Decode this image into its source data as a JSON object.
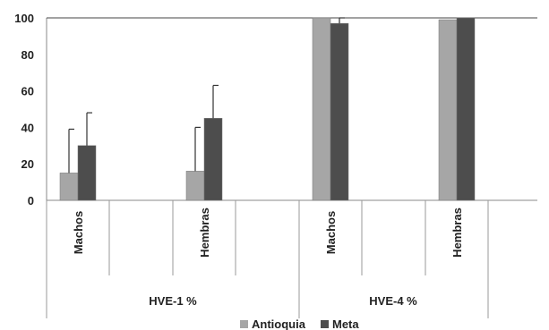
{
  "chart_data": {
    "type": "bar",
    "title": "",
    "xlabel": "",
    "ylabel": "",
    "ylim": [
      0,
      100
    ],
    "yticks": [
      "0",
      "20",
      "40",
      "60",
      "80",
      "100"
    ],
    "grid": false,
    "legend_position": "bottom",
    "groups": [
      {
        "label": "HVE-1 %",
        "categories": [
          "Machos",
          "Hembras"
        ]
      },
      {
        "label": "HVE-4 %",
        "categories": [
          "Machos",
          "Hembras"
        ]
      }
    ],
    "series": [
      {
        "name": "Antioquia",
        "color": "#a6a6a6",
        "values": [
          15,
          16,
          100,
          99
        ],
        "error": [
          24,
          24,
          0,
          0
        ]
      },
      {
        "name": "Meta",
        "color": "#4d4d4d",
        "values": [
          30,
          45,
          97,
          100
        ],
        "error": [
          18,
          18,
          3,
          0
        ]
      }
    ]
  }
}
